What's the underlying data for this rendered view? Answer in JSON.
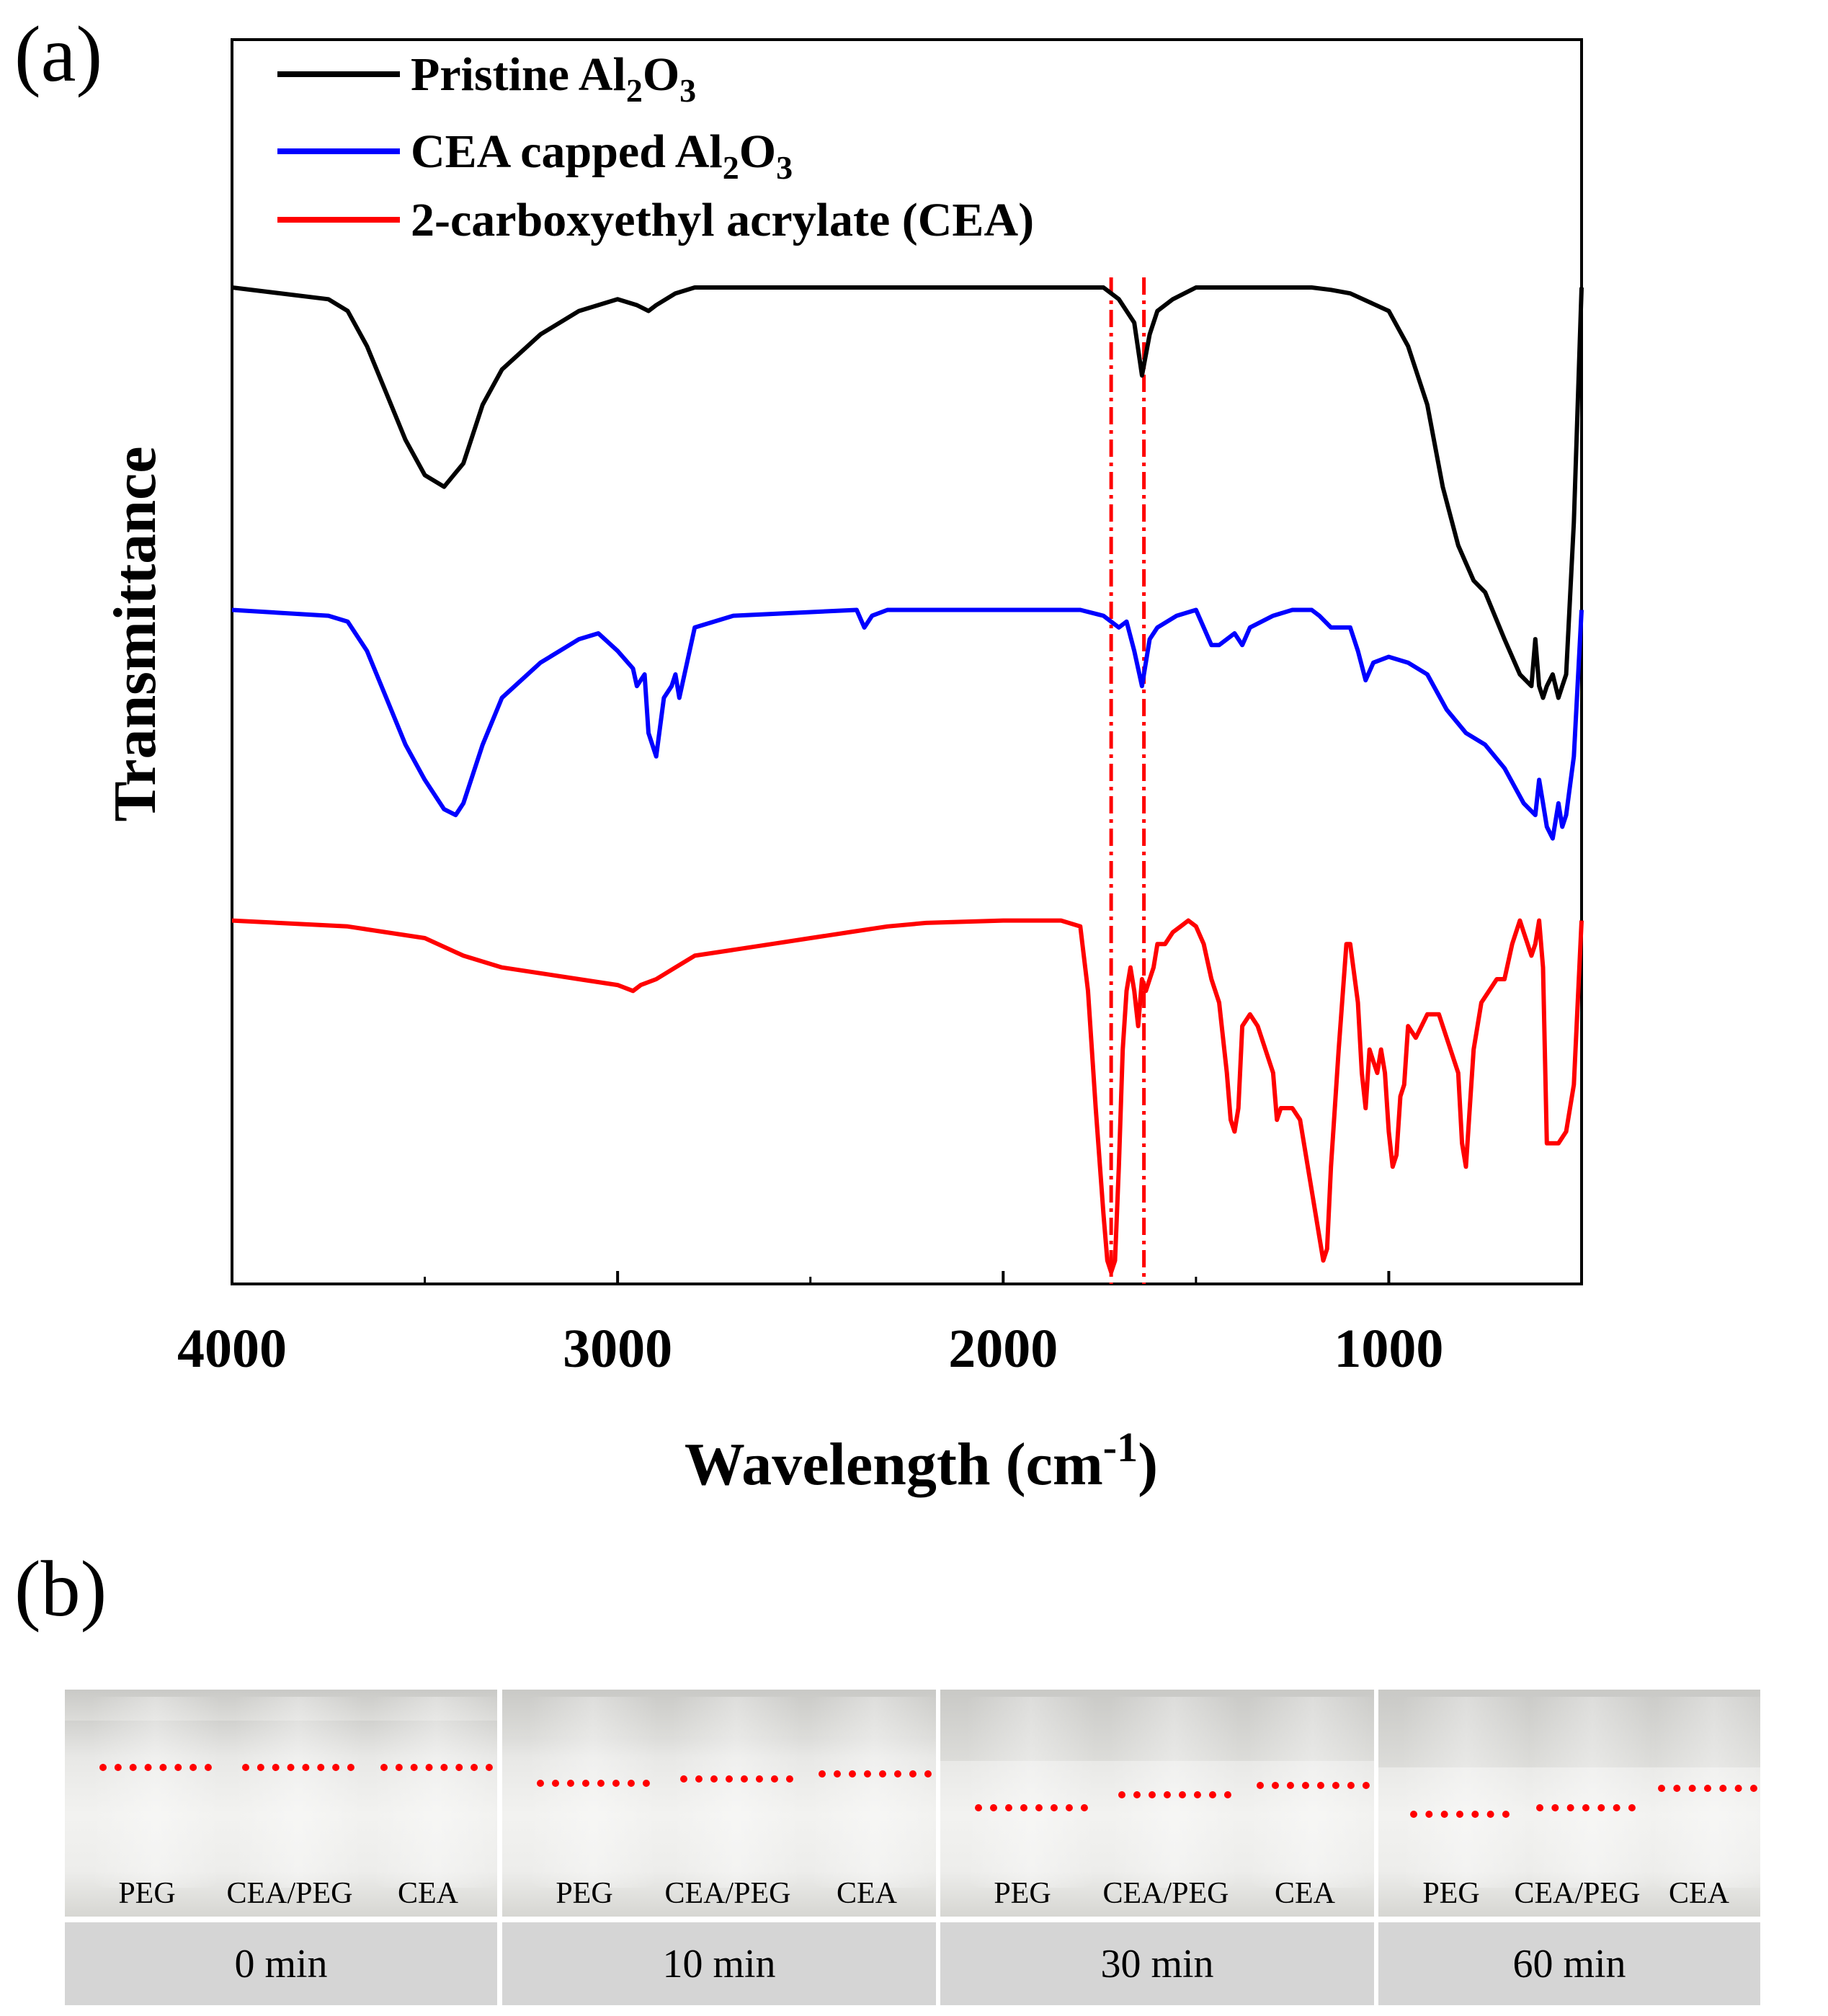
{
  "panel_labels": {
    "a": "(a)",
    "b": "(b)"
  },
  "chart_data": {
    "type": "line",
    "title": "",
    "xlabel": "Wavelength (cm",
    "xlabel_sup": "-1",
    "xlabel_tail": ")",
    "ylabel": "Transmittance",
    "xlim": [
      4000,
      500
    ],
    "ylim": [
      0,
      1
    ],
    "x_ticks": [
      4000,
      3000,
      2000,
      1000
    ],
    "x_tick_labels": [
      "4000",
      "3000",
      "2000",
      "1000"
    ],
    "grid": false,
    "legend_position": "top-left",
    "reference_lines": [
      1720,
      1635
    ],
    "series": [
      {
        "name": "Pristine Al2O3",
        "legend": {
          "pre": "Pristine Al",
          "sub1": "2",
          "mid": "O",
          "sub2": "3"
        },
        "color": "#000000",
        "x": [
          4000,
          3750,
          3700,
          3650,
          3600,
          3550,
          3500,
          3450,
          3400,
          3350,
          3300,
          3200,
          3100,
          3000,
          2950,
          2920,
          2900,
          2850,
          2800,
          2700,
          2400,
          2000,
          1800,
          1740,
          1700,
          1660,
          1640,
          1620,
          1600,
          1560,
          1500,
          1400,
          1300,
          1200,
          1150,
          1100,
          1000,
          950,
          900,
          860,
          820,
          780,
          750,
          700,
          660,
          630,
          620,
          610,
          600,
          590,
          575,
          560,
          550,
          540,
          520,
          500
        ],
        "y": [
          0.85,
          0.84,
          0.83,
          0.8,
          0.76,
          0.72,
          0.69,
          0.68,
          0.7,
          0.75,
          0.78,
          0.81,
          0.83,
          0.84,
          0.835,
          0.83,
          0.835,
          0.845,
          0.85,
          0.85,
          0.85,
          0.85,
          0.85,
          0.85,
          0.84,
          0.82,
          0.775,
          0.81,
          0.83,
          0.84,
          0.85,
          0.85,
          0.85,
          0.85,
          0.848,
          0.845,
          0.83,
          0.8,
          0.75,
          0.68,
          0.63,
          0.6,
          0.59,
          0.55,
          0.52,
          0.51,
          0.55,
          0.51,
          0.5,
          0.51,
          0.52,
          0.5,
          0.51,
          0.52,
          0.65,
          0.85
        ]
      },
      {
        "name": "CEA capped Al2O3",
        "legend": {
          "pre": "CEA capped Al",
          "sub1": "2",
          "mid": "O",
          "sub2": "3"
        },
        "color": "#0000ff",
        "x": [
          4000,
          3750,
          3700,
          3650,
          3600,
          3550,
          3500,
          3450,
          3420,
          3400,
          3350,
          3300,
          3200,
          3100,
          3050,
          3000,
          2960,
          2950,
          2930,
          2920,
          2900,
          2880,
          2860,
          2850,
          2840,
          2800,
          2700,
          2380,
          2360,
          2340,
          2300,
          2000,
          1800,
          1740,
          1700,
          1680,
          1660,
          1640,
          1620,
          1600,
          1550,
          1500,
          1460,
          1440,
          1400,
          1380,
          1360,
          1300,
          1250,
          1200,
          1180,
          1150,
          1100,
          1080,
          1060,
          1040,
          1000,
          950,
          900,
          850,
          800,
          750,
          700,
          650,
          620,
          610,
          600,
          590,
          575,
          560,
          550,
          540,
          520,
          500
        ],
        "y": [
          0.575,
          0.57,
          0.565,
          0.54,
          0.5,
          0.46,
          0.43,
          0.405,
          0.4,
          0.41,
          0.46,
          0.5,
          0.53,
          0.55,
          0.555,
          0.54,
          0.525,
          0.51,
          0.52,
          0.47,
          0.45,
          0.5,
          0.51,
          0.52,
          0.5,
          0.56,
          0.57,
          0.575,
          0.56,
          0.57,
          0.575,
          0.575,
          0.575,
          0.57,
          0.56,
          0.565,
          0.54,
          0.51,
          0.55,
          0.56,
          0.57,
          0.575,
          0.545,
          0.545,
          0.555,
          0.545,
          0.56,
          0.57,
          0.575,
          0.575,
          0.57,
          0.56,
          0.56,
          0.54,
          0.515,
          0.53,
          0.535,
          0.53,
          0.52,
          0.49,
          0.47,
          0.46,
          0.44,
          0.41,
          0.4,
          0.43,
          0.41,
          0.39,
          0.38,
          0.41,
          0.39,
          0.4,
          0.45,
          0.575
        ]
      },
      {
        "name": "2-carboxyethyl acrylate (CEA)",
        "legend": {
          "pre": "2-carboxyethyl acrylate (CEA)",
          "sub1": "",
          "mid": "",
          "sub2": ""
        },
        "color": "#ff0000",
        "x": [
          4000,
          3700,
          3500,
          3400,
          3300,
          3200,
          3100,
          3000,
          2960,
          2940,
          2900,
          2850,
          2800,
          2700,
          2600,
          2500,
          2400,
          2300,
          2200,
          2000,
          1850,
          1800,
          1780,
          1760,
          1740,
          1730,
          1720,
          1710,
          1700,
          1690,
          1680,
          1670,
          1660,
          1650,
          1640,
          1630,
          1620,
          1610,
          1600,
          1580,
          1560,
          1540,
          1520,
          1500,
          1480,
          1460,
          1440,
          1420,
          1410,
          1400,
          1390,
          1380,
          1360,
          1340,
          1320,
          1300,
          1290,
          1280,
          1270,
          1260,
          1250,
          1230,
          1200,
          1180,
          1170,
          1160,
          1150,
          1130,
          1110,
          1100,
          1080,
          1070,
          1060,
          1050,
          1040,
          1030,
          1020,
          1010,
          1000,
          990,
          980,
          970,
          960,
          950,
          930,
          900,
          870,
          850,
          820,
          810,
          800,
          790,
          780,
          760,
          740,
          720,
          700,
          680,
          660,
          650,
          640,
          630,
          620,
          610,
          600,
          590,
          580,
          560,
          540,
          520,
          500
        ],
        "y": [
          0.31,
          0.305,
          0.295,
          0.28,
          0.27,
          0.265,
          0.26,
          0.255,
          0.25,
          0.255,
          0.26,
          0.27,
          0.28,
          0.285,
          0.29,
          0.295,
          0.3,
          0.305,
          0.308,
          0.31,
          0.31,
          0.305,
          0.25,
          0.15,
          0.06,
          0.02,
          0.01,
          0.02,
          0.1,
          0.2,
          0.25,
          0.27,
          0.25,
          0.22,
          0.26,
          0.25,
          0.26,
          0.27,
          0.29,
          0.29,
          0.3,
          0.305,
          0.31,
          0.305,
          0.29,
          0.26,
          0.24,
          0.18,
          0.14,
          0.13,
          0.15,
          0.22,
          0.23,
          0.22,
          0.2,
          0.18,
          0.14,
          0.15,
          0.15,
          0.15,
          0.15,
          0.14,
          0.08,
          0.04,
          0.02,
          0.03,
          0.1,
          0.2,
          0.29,
          0.29,
          0.24,
          0.18,
          0.15,
          0.2,
          0.19,
          0.18,
          0.2,
          0.18,
          0.13,
          0.1,
          0.11,
          0.16,
          0.17,
          0.22,
          0.21,
          0.23,
          0.23,
          0.21,
          0.18,
          0.12,
          0.1,
          0.15,
          0.2,
          0.24,
          0.25,
          0.26,
          0.26,
          0.29,
          0.31,
          0.3,
          0.29,
          0.28,
          0.29,
          0.31,
          0.27,
          0.12,
          0.12,
          0.12,
          0.13,
          0.17,
          0.31
        ]
      }
    ]
  },
  "photo_panel": {
    "frames": [
      {
        "time": "0 min",
        "vials": [
          "PEG",
          "CEA/PEG",
          "CEA"
        ],
        "levels": [
          0.24,
          0.24,
          0.24
        ]
      },
      {
        "time": "10 min",
        "vials": [
          "PEG",
          "CEA/PEG",
          "CEA"
        ],
        "levels": [
          0.36,
          0.33,
          0.29
        ]
      },
      {
        "time": "30 min",
        "vials": [
          "PEG",
          "CEA/PEG",
          "CEA"
        ],
        "levels": [
          0.55,
          0.45,
          0.38
        ]
      },
      {
        "time": "60 min",
        "vials": [
          "PEG",
          "CEA/PEG",
          "CEA"
        ],
        "levels": [
          0.6,
          0.55,
          0.4
        ]
      }
    ],
    "line_color": "#ff0000"
  }
}
